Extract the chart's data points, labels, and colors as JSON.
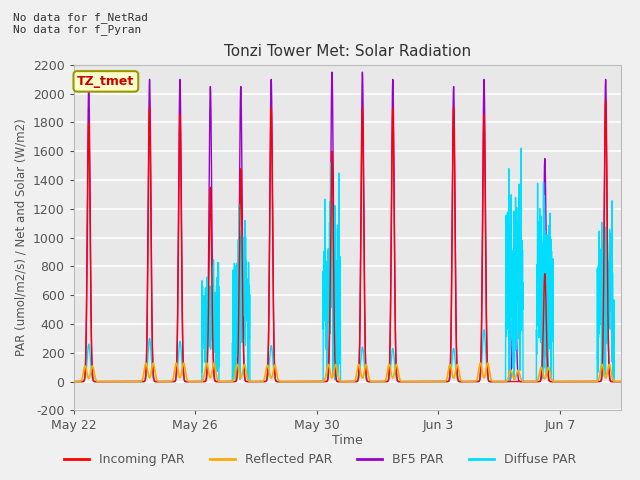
{
  "title": "Tonzi Tower Met: Solar Radiation",
  "xlabel": "Time",
  "ylabel": "PAR (umol/m2/s) / Net and Solar (W/m2)",
  "ylim": [
    -200,
    2200
  ],
  "yticks": [
    -200,
    0,
    200,
    400,
    600,
    800,
    1000,
    1200,
    1400,
    1600,
    1800,
    2000,
    2200
  ],
  "fig_bg_color": "#f0f0f0",
  "plot_bg_color": "#e8e8e8",
  "grid_color": "#ffffff",
  "text_color": "#555555",
  "no_data_text1": "No data for f_NetRad",
  "no_data_text2": "No data for f_Pyran",
  "tz_label": "TZ_tmet",
  "tz_box_color": "#ffffcc",
  "tz_border_color": "#999900",
  "tz_text_color": "#cc0000",
  "legend_entries": [
    "Incoming PAR",
    "Reflected PAR",
    "BF5 PAR",
    "Diffuse PAR"
  ],
  "legend_colors": [
    "#ff0000",
    "#ffaa00",
    "#9900cc",
    "#00ddff"
  ],
  "x_tick_labels": [
    "May 22",
    "May 26",
    "May 30",
    "Jun 3",
    "Jun 7"
  ],
  "x_tick_positions": [
    0,
    4,
    8,
    12,
    16
  ],
  "num_days": 18,
  "pts_per_day": 288,
  "day_data": [
    {
      "inc": 1800,
      "bf5": 2050,
      "dif": 260,
      "ref": 110,
      "cloudy": false
    },
    {
      "inc": 0,
      "bf5": 0,
      "dif": 0,
      "ref": 0,
      "cloudy": false
    },
    {
      "inc": 1900,
      "bf5": 2100,
      "dif": 300,
      "ref": 130,
      "cloudy": false
    },
    {
      "inc": 1850,
      "bf5": 2100,
      "dif": 280,
      "ref": 130,
      "cloudy": false
    },
    {
      "inc": 1350,
      "bf5": 2050,
      "dif": 600,
      "ref": 130,
      "cloudy": true
    },
    {
      "inc": 1480,
      "bf5": 2050,
      "dif": 800,
      "ref": 120,
      "cloudy": true
    },
    {
      "inc": 1900,
      "bf5": 2100,
      "dif": 250,
      "ref": 115,
      "cloudy": false
    },
    {
      "inc": 0,
      "bf5": 0,
      "dif": 0,
      "ref": 0,
      "cloudy": false
    },
    {
      "inc": 1600,
      "bf5": 2150,
      "dif": 960,
      "ref": 120,
      "cloudy": true
    },
    {
      "inc": 1900,
      "bf5": 2150,
      "dif": 240,
      "ref": 120,
      "cloudy": false
    },
    {
      "inc": 1900,
      "bf5": 2100,
      "dif": 230,
      "ref": 120,
      "cloudy": false
    },
    {
      "inc": 0,
      "bf5": 0,
      "dif": 0,
      "ref": 0,
      "cloudy": false
    },
    {
      "inc": 1900,
      "bf5": 2050,
      "dif": 230,
      "ref": 120,
      "cloudy": false
    },
    {
      "inc": 1850,
      "bf5": 2100,
      "dif": 360,
      "ref": 130,
      "cloudy": false
    },
    {
      "inc": 0,
      "bf5": 1150,
      "dif": 1000,
      "ref": 80,
      "cloudy": true
    },
    {
      "inc": 750,
      "bf5": 1550,
      "dif": 900,
      "ref": 100,
      "cloudy": true
    },
    {
      "inc": 0,
      "bf5": 0,
      "dif": 0,
      "ref": 0,
      "cloudy": false
    },
    {
      "inc": 1950,
      "bf5": 2100,
      "dif": 800,
      "ref": 120,
      "cloudy": true
    }
  ]
}
